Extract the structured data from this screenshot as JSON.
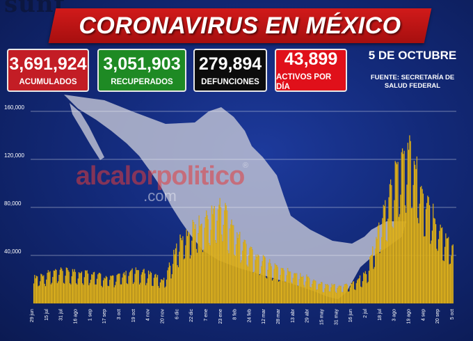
{
  "header": {
    "title": "CORONAVIRUS EN MÉXICO",
    "logo_text": "sunt"
  },
  "stats": {
    "acumulados": {
      "value": "3,691,924",
      "label": "ACUMULADOS"
    },
    "recuperados": {
      "value": "3,051,903",
      "label": "RECUPERADOS"
    },
    "defunciones": {
      "value": "279,894",
      "label": "DEFUNCIONES"
    },
    "activos": {
      "value": "43,899",
      "label": "ACTIVOS POR DÍA"
    }
  },
  "date": "5 DE OCTUBRE",
  "source": {
    "line1": "FUENTE: SECRETARÍA DE",
    "line2": "SALUD FEDERAL"
  },
  "watermark": {
    "main": "alcalorpolitico",
    "sub": ".com",
    "reg": "®"
  },
  "colors": {
    "bar": "#e6b81e",
    "bar_edge": "#a37a06",
    "grid": "#ffffff",
    "map": "#c9cbd8",
    "red_box": "#c31d25",
    "green_box": "#1e8a24",
    "black_box": "#0c0c0c",
    "bright_red_box": "#e0101a"
  },
  "chart_data": {
    "type": "bar",
    "title": "",
    "xlabel": "",
    "ylabel": "",
    "ylim": [
      0,
      160000
    ],
    "yticks": [
      "40,000",
      "80,000",
      "120,000",
      "160,000"
    ],
    "ytick_values": [
      40000,
      80000,
      120000,
      160000
    ],
    "xticks": [
      "29 jun",
      "15 jul",
      "31 jul",
      "16 ago",
      "1 sep",
      "17 sep",
      "3 oct",
      "19 oct",
      "4 nov",
      "20 nov",
      "6 dic",
      "22 dic",
      "7 ene",
      "23 ene",
      "8 feb",
      "24 feb",
      "12 mar",
      "28 mar",
      "13 abr",
      "29 abr",
      "15 may",
      "31 may",
      "16 jun",
      "2 jul",
      "18 jul",
      "3 ago",
      "19 ago",
      "4 sep",
      "20 sep",
      "5 oct"
    ],
    "grid": true,
    "bar_count": 465,
    "series_segments": [
      {
        "from_tick": 0,
        "to_tick": 1,
        "values": [
          22000,
          26000
        ]
      },
      {
        "from_tick": 1,
        "to_tick": 2,
        "values": [
          26000,
          28000
        ]
      },
      {
        "from_tick": 2,
        "to_tick": 3,
        "values": [
          28000,
          27000
        ]
      },
      {
        "from_tick": 3,
        "to_tick": 4,
        "values": [
          27000,
          26000
        ]
      },
      {
        "from_tick": 4,
        "to_tick": 5,
        "values": [
          26000,
          22000
        ]
      },
      {
        "from_tick": 5,
        "to_tick": 6,
        "values": [
          22000,
          24000
        ]
      },
      {
        "from_tick": 6,
        "to_tick": 7,
        "values": [
          24000,
          28000
        ]
      },
      {
        "from_tick": 7,
        "to_tick": 8,
        "values": [
          28000,
          26000
        ]
      },
      {
        "from_tick": 8,
        "to_tick": 9,
        "values": [
          26000,
          20000
        ]
      },
      {
        "from_tick": 9,
        "to_tick": 10,
        "values": [
          20000,
          52000
        ]
      },
      {
        "from_tick": 10,
        "to_tick": 11,
        "values": [
          52000,
          66000
        ]
      },
      {
        "from_tick": 11,
        "to_tick": 12,
        "values": [
          66000,
          74000
        ]
      },
      {
        "from_tick": 12,
        "to_tick": 13,
        "values": [
          74000,
          86000
        ]
      },
      {
        "from_tick": 13,
        "to_tick": 14,
        "values": [
          86000,
          60000
        ]
      },
      {
        "from_tick": 14,
        "to_tick": 15,
        "values": [
          60000,
          46000
        ]
      },
      {
        "from_tick": 15,
        "to_tick": 16,
        "values": [
          46000,
          36000
        ]
      },
      {
        "from_tick": 16,
        "to_tick": 17,
        "values": [
          36000,
          30000
        ]
      },
      {
        "from_tick": 17,
        "to_tick": 18,
        "values": [
          30000,
          26000
        ]
      },
      {
        "from_tick": 18,
        "to_tick": 19,
        "values": [
          26000,
          22000
        ]
      },
      {
        "from_tick": 19,
        "to_tick": 20,
        "values": [
          22000,
          16000
        ]
      },
      {
        "from_tick": 20,
        "to_tick": 21,
        "values": [
          16000,
          15000
        ]
      },
      {
        "from_tick": 21,
        "to_tick": 22,
        "values": [
          15000,
          17000
        ]
      },
      {
        "from_tick": 22,
        "to_tick": 23,
        "values": [
          17000,
          26000
        ]
      },
      {
        "from_tick": 23,
        "to_tick": 24,
        "values": [
          26000,
          68000
        ]
      },
      {
        "from_tick": 24,
        "to_tick": 25,
        "values": [
          68000,
          112000
        ]
      },
      {
        "from_tick": 25,
        "to_tick": 26,
        "values": [
          112000,
          132000
        ]
      },
      {
        "from_tick": 26,
        "to_tick": 27,
        "values": [
          132000,
          96000
        ]
      },
      {
        "from_tick": 27,
        "to_tick": 28,
        "values": [
          96000,
          66000
        ]
      },
      {
        "from_tick": 28,
        "to_tick": 29,
        "values": [
          66000,
          46000
        ]
      }
    ]
  }
}
